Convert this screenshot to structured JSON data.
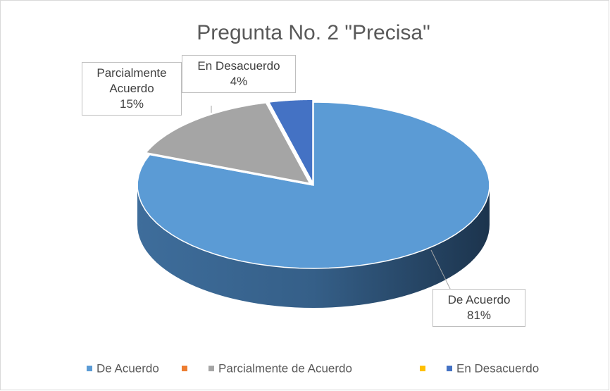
{
  "chart_data": {
    "type": "pie3d",
    "title": "Pregunta No. 2 \"Precisa\"",
    "categories": [
      "De Acuerdo",
      null,
      "Parcialmente de Acuerdo",
      null,
      "En Desacuerdo"
    ],
    "values": [
      81,
      0,
      15,
      0,
      4
    ],
    "colors": [
      "#5b9bd5",
      "#ed7d31",
      "#a5a5a5",
      "#ffc000",
      "#4472c4"
    ],
    "label_names": [
      "De Acuerdo",
      null,
      "Parcialmente Acuerdo",
      null,
      "En Desacuerdo"
    ],
    "value_labels": [
      "81%",
      null,
      "15%",
      null,
      "4%"
    ],
    "legend": "bottom"
  }
}
